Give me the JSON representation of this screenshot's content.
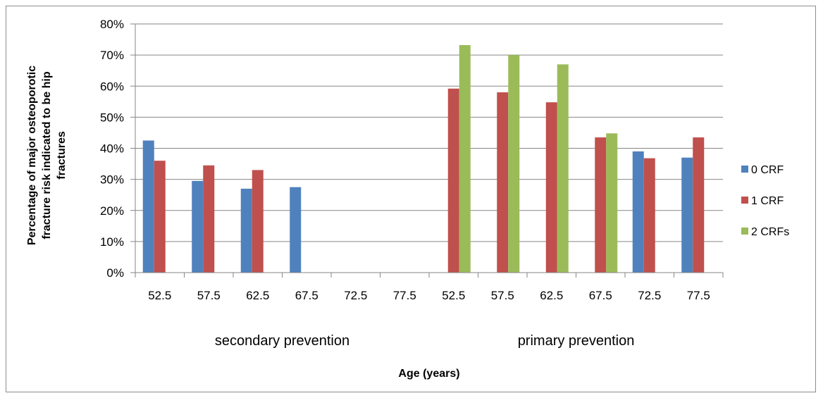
{
  "chart_data": {
    "type": "bar",
    "title": "",
    "xlabel": "Age (years)",
    "ylabel": "Percentage of major osteoporotic fracture risk indicated to be hip fractures",
    "ylabel_lines": [
      "Percentage of major osteoporotic",
      "fracture risk indicated to be hip",
      "fractures"
    ],
    "ylim": [
      0,
      80
    ],
    "yticks": [
      0,
      10,
      20,
      30,
      40,
      50,
      60,
      70,
      80
    ],
    "ytick_labels": [
      "0%",
      "10%",
      "20%",
      "30%",
      "40%",
      "50%",
      "60%",
      "70%",
      "80%"
    ],
    "categories": [
      "52.5",
      "57.5",
      "62.5",
      "67.5",
      "72.5",
      "77.5",
      "52.5",
      "57.5",
      "62.5",
      "67.5",
      "72.5",
      "77.5"
    ],
    "groups": [
      {
        "label": "secondary prevention",
        "start": 0,
        "end": 5
      },
      {
        "label": "primary prevention",
        "start": 6,
        "end": 11
      }
    ],
    "series": [
      {
        "name": "0 CRF",
        "color": "#4f81bd",
        "values": [
          42.5,
          29.5,
          27,
          27.5,
          null,
          null,
          null,
          null,
          null,
          null,
          39,
          37
        ]
      },
      {
        "name": "1 CRF",
        "color": "#c0504d",
        "values": [
          36,
          34.5,
          33,
          null,
          null,
          null,
          59.2,
          58,
          54.8,
          43.5,
          36.8,
          43.5
        ]
      },
      {
        "name": "2 CRFs",
        "color": "#9bbb59",
        "values": [
          null,
          null,
          null,
          null,
          null,
          null,
          73.2,
          70,
          67,
          44.8,
          null,
          null
        ]
      }
    ],
    "grid": true,
    "legend": "right"
  }
}
